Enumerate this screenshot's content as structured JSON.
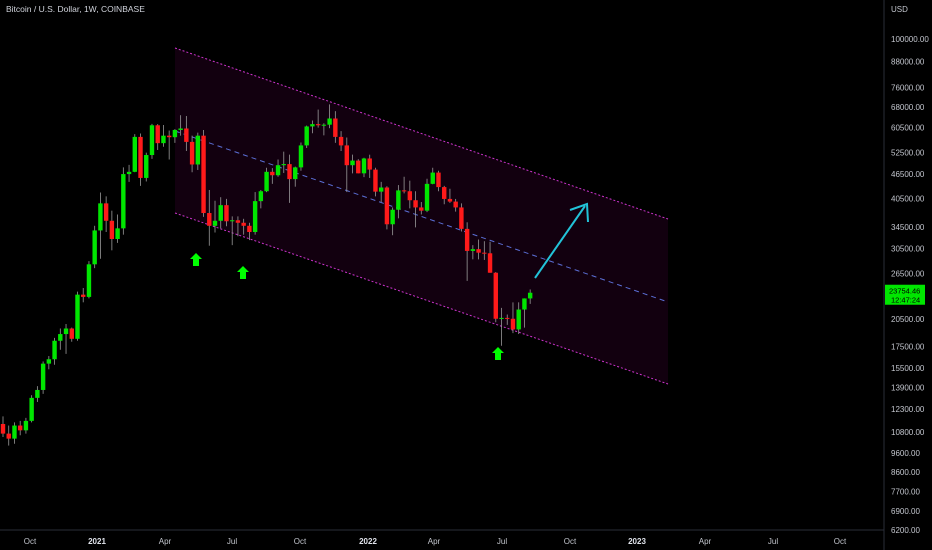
{
  "header": {
    "title": "Bitcoin / U.S. Dollar, 1W, COINBASE"
  },
  "colors": {
    "up": "#00e600",
    "down": "#ff1a1a",
    "channel": "#cc33cc",
    "channel_fill": "#12000f",
    "midline": "#5b6ed6",
    "arrow": "#22c3d8",
    "marker": "#00ff00",
    "price_badge": "#00e600"
  },
  "price_badge": {
    "price": "23754.46",
    "countdown": "12:47:24"
  },
  "chart_data": {
    "type": "candlestick",
    "currency_label": "USD",
    "y_scale": "log",
    "ylim": [
      6200,
      110000
    ],
    "y_ticks": [
      "100000.00",
      "88000.00",
      "76000.00",
      "68000.00",
      "60500.00",
      "52500.00",
      "46500.00",
      "40500.00",
      "34500.00",
      "30500.00",
      "26500.00",
      "20500.00",
      "17500.00",
      "15500.00",
      "13900.00",
      "12300.00",
      "10800.00",
      "9600.00",
      "8600.00",
      "7700.00",
      "6900.00",
      "6200.00"
    ],
    "x_ticks": [
      {
        "label": "Oct",
        "bold": false
      },
      {
        "label": "2021",
        "bold": true
      },
      {
        "label": "Apr",
        "bold": false
      },
      {
        "label": "Jul",
        "bold": false
      },
      {
        "label": "Oct",
        "bold": false
      },
      {
        "label": "2022",
        "bold": true
      },
      {
        "label": "Apr",
        "bold": false
      },
      {
        "label": "Jul",
        "bold": false
      },
      {
        "label": "Oct",
        "bold": false
      },
      {
        "label": "2023",
        "bold": true
      },
      {
        "label": "Apr",
        "bold": false
      },
      {
        "label": "Jul",
        "bold": false
      },
      {
        "label": "Oct",
        "bold": false
      }
    ],
    "candles": [
      [
        11300,
        11800,
        10500,
        10700
      ],
      [
        10700,
        11200,
        10000,
        10400
      ],
      [
        10400,
        11400,
        10100,
        11200
      ],
      [
        11200,
        11500,
        10600,
        10900
      ],
      [
        10900,
        11700,
        10700,
        11500
      ],
      [
        11500,
        13300,
        11400,
        13100
      ],
      [
        13100,
        14000,
        12800,
        13700
      ],
      [
        13700,
        16100,
        13400,
        15900
      ],
      [
        15900,
        16600,
        15400,
        16300
      ],
      [
        16300,
        18400,
        15800,
        18100
      ],
      [
        18100,
        19400,
        17200,
        18800
      ],
      [
        18800,
        19900,
        16800,
        19400
      ],
      [
        19400,
        19500,
        18000,
        18300
      ],
      [
        18300,
        23900,
        18100,
        23500
      ],
      [
        23500,
        24400,
        22500,
        23200
      ],
      [
        23200,
        28400,
        23000,
        27900
      ],
      [
        27900,
        34700,
        27300,
        33800
      ],
      [
        33800,
        41900,
        28800,
        39400
      ],
      [
        39400,
        41000,
        33500,
        35700
      ],
      [
        35700,
        37800,
        30200,
        32200
      ],
      [
        32200,
        37000,
        31500,
        34200
      ],
      [
        34200,
        48300,
        33000,
        46500
      ],
      [
        46500,
        49000,
        44500,
        47100
      ],
      [
        47100,
        58300,
        47000,
        57400
      ],
      [
        57400,
        58500,
        43500,
        45500
      ],
      [
        45500,
        52500,
        44600,
        51800
      ],
      [
        51800,
        61800,
        50700,
        61300
      ],
      [
        61300,
        61700,
        53300,
        55400
      ],
      [
        55400,
        61400,
        54300,
        57800
      ],
      [
        57800,
        59500,
        50500,
        57300
      ],
      [
        57300,
        60000,
        55500,
        59700
      ],
      [
        59700,
        64900,
        57800,
        60200
      ],
      [
        60200,
        64600,
        53000,
        55800
      ],
      [
        55800,
        57800,
        47000,
        49100
      ],
      [
        49100,
        58800,
        47600,
        57800
      ],
      [
        57800,
        59700,
        36500,
        37300
      ],
      [
        37300,
        42500,
        31000,
        34700
      ],
      [
        34700,
        40000,
        33400,
        35700
      ],
      [
        35700,
        40800,
        34200,
        39000
      ],
      [
        39000,
        40400,
        34600,
        35600
      ],
      [
        35600,
        36600,
        31100,
        35800
      ],
      [
        35800,
        36600,
        32700,
        35300
      ],
      [
        35300,
        36100,
        33000,
        34700
      ],
      [
        34700,
        35300,
        32000,
        33500
      ],
      [
        33500,
        42000,
        33000,
        39900
      ],
      [
        39900,
        42500,
        38300,
        42200
      ],
      [
        42200,
        48200,
        42000,
        47100
      ],
      [
        47100,
        48100,
        44000,
        46200
      ],
      [
        46200,
        50500,
        45800,
        48900
      ],
      [
        48900,
        52800,
        46800,
        49200
      ],
      [
        49200,
        51900,
        39500,
        45200
      ],
      [
        45200,
        48500,
        43300,
        48300
      ],
      [
        48300,
        55600,
        47400,
        54700
      ],
      [
        54700,
        61200,
        53900,
        60900
      ],
      [
        60900,
        63000,
        58600,
        61700
      ],
      [
        61700,
        67000,
        60500,
        61300
      ],
      [
        61300,
        62000,
        57900,
        61500
      ],
      [
        61500,
        69000,
        60300,
        63700
      ],
      [
        63700,
        66400,
        55500,
        57400
      ],
      [
        57400,
        59300,
        53000,
        54700
      ],
      [
        54700,
        57200,
        42000,
        48900
      ],
      [
        48900,
        51900,
        46700,
        50200
      ],
      [
        50200,
        50600,
        46700,
        46700
      ],
      [
        46700,
        51000,
        45700,
        50800
      ],
      [
        50800,
        51900,
        45500,
        47700
      ],
      [
        47700,
        48200,
        41000,
        42100
      ],
      [
        42100,
        44500,
        39700,
        43100
      ],
      [
        43100,
        43400,
        34000,
        35000
      ],
      [
        35000,
        38500,
        32900,
        38000
      ],
      [
        38000,
        43700,
        36200,
        42400
      ],
      [
        42400,
        45800,
        41700,
        42200
      ],
      [
        42200,
        44800,
        38300,
        40100
      ],
      [
        40100,
        42200,
        34400,
        38500
      ],
      [
        38500,
        39700,
        37000,
        37800
      ],
      [
        37800,
        45300,
        37500,
        44000
      ],
      [
        44000,
        48200,
        43900,
        46900
      ],
      [
        46900,
        47400,
        42200,
        43200
      ],
      [
        43200,
        43500,
        39200,
        40400
      ],
      [
        40400,
        42800,
        39500,
        39800
      ],
      [
        39800,
        40400,
        37600,
        38500
      ],
      [
        38500,
        39400,
        33600,
        34100
      ],
      [
        34100,
        35400,
        25400,
        30100
      ],
      [
        30100,
        31100,
        28700,
        30400
      ],
      [
        30400,
        32100,
        28700,
        29800
      ],
      [
        29800,
        31800,
        28600,
        29700
      ],
      [
        29700,
        31700,
        26600,
        26600
      ],
      [
        26600,
        26700,
        20100,
        20500
      ],
      [
        20500,
        21800,
        17600,
        20600
      ],
      [
        20600,
        21000,
        19800,
        20500
      ],
      [
        20500,
        22500,
        18900,
        19300
      ],
      [
        19300,
        22500,
        18800,
        21600
      ],
      [
        21600,
        23000,
        19500,
        23000
      ],
      [
        23000,
        24200,
        22300,
        23754
      ]
    ]
  }
}
